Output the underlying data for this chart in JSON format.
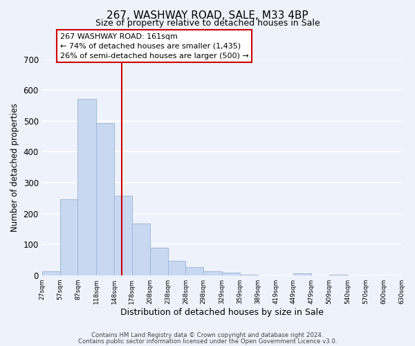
{
  "title": "267, WASHWAY ROAD, SALE, M33 4BP",
  "subtitle": "Size of property relative to detached houses in Sale",
  "xlabel": "Distribution of detached houses by size in Sale",
  "ylabel": "Number of detached properties",
  "bin_edges": [
    27,
    57,
    87,
    118,
    148,
    178,
    208,
    238,
    268,
    298,
    329,
    359,
    389,
    419,
    449,
    479,
    509,
    540,
    570,
    600,
    630
  ],
  "bar_heights": [
    12,
    245,
    572,
    493,
    258,
    168,
    90,
    47,
    27,
    13,
    9,
    2,
    0,
    0,
    5,
    0,
    1,
    0,
    0,
    0
  ],
  "bar_color": "#c8d8f0",
  "bar_edge_color": "#a0b8d8",
  "ylim": [
    0,
    700
  ],
  "yticks": [
    0,
    100,
    200,
    300,
    400,
    500,
    600,
    700
  ],
  "property_sqm": 161,
  "annotation_title": "267 WASHWAY ROAD: 161sqm",
  "annotation_line1": "← 74% of detached houses are smaller (1,435)",
  "annotation_line2": "26% of semi-detached houses are larger (500) →",
  "annotation_box_color": "#ffffff",
  "annotation_border_color": "#cc0000",
  "vline_color": "#cc0000",
  "tick_labels": [
    "27sqm",
    "57sqm",
    "87sqm",
    "118sqm",
    "148sqm",
    "178sqm",
    "208sqm",
    "238sqm",
    "268sqm",
    "298sqm",
    "329sqm",
    "359sqm",
    "389sqm",
    "419sqm",
    "449sqm",
    "479sqm",
    "509sqm",
    "540sqm",
    "570sqm",
    "600sqm",
    "630sqm"
  ],
  "footer_line1": "Contains HM Land Registry data © Crown copyright and database right 2024.",
  "footer_line2": "Contains public sector information licensed under the Open Government Licence v3.0.",
  "background_color": "#eef2fb",
  "grid_color": "#ffffff",
  "title_fontsize": 11,
  "subtitle_fontsize": 9,
  "annotation_fontsize": 8,
  "vline_x": 161
}
